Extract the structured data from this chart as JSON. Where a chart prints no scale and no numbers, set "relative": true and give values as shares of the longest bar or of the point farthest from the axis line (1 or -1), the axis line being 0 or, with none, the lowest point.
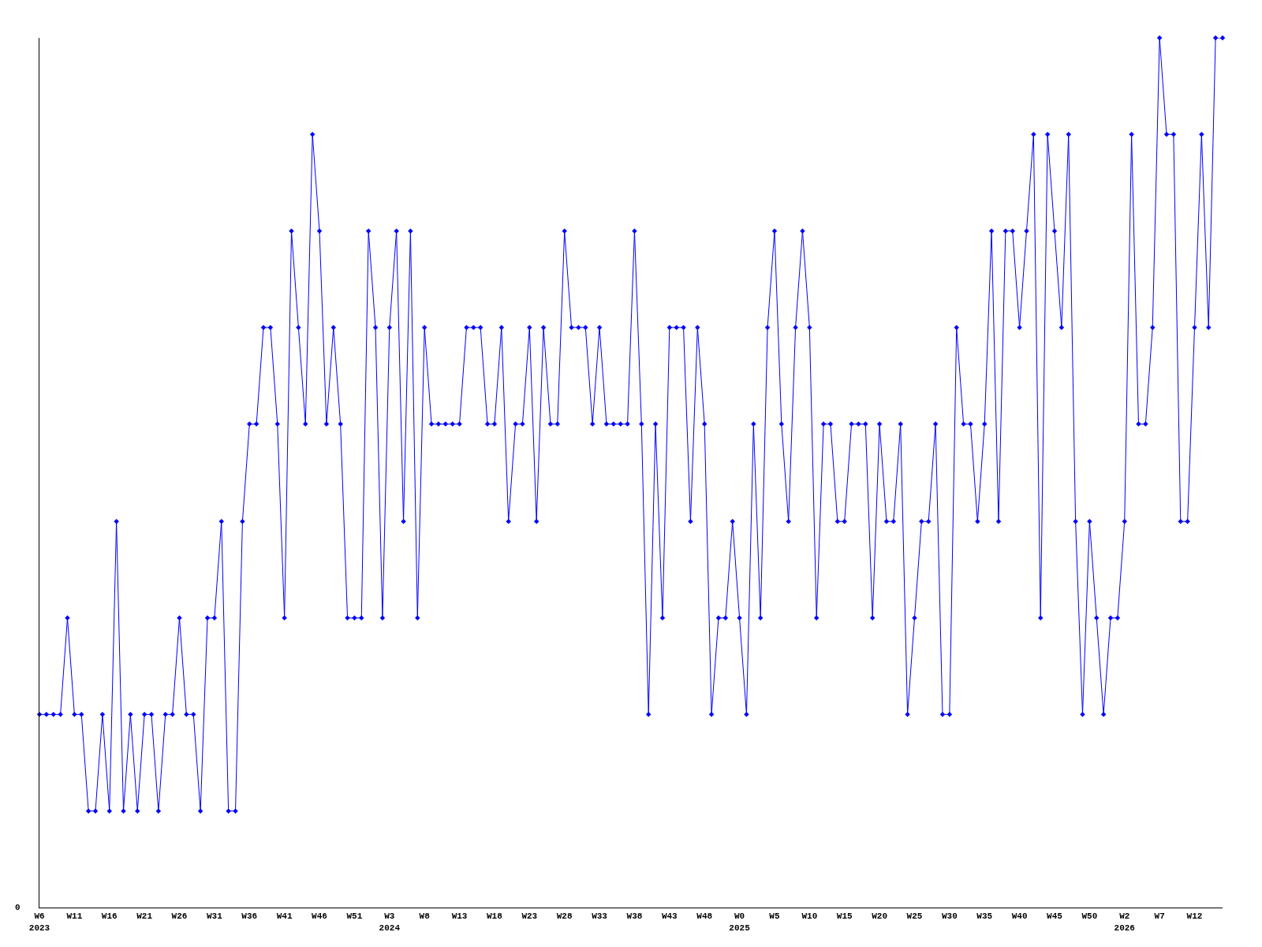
{
  "chart_data": {
    "type": "line",
    "relative": true,
    "color": "#0000ff",
    "marker": "diamond",
    "line_style": "solid",
    "legend": false,
    "annotations": [
      "0"
    ],
    "categories": [
      "W6\n2023",
      null,
      null,
      null,
      null,
      "W11",
      null,
      null,
      null,
      null,
      "W16",
      null,
      null,
      null,
      null,
      "W21",
      null,
      null,
      null,
      null,
      "W26",
      null,
      null,
      null,
      null,
      "W31",
      null,
      null,
      null,
      null,
      "W36",
      null,
      null,
      null,
      null,
      "W41",
      null,
      null,
      null,
      null,
      "W46",
      null,
      null,
      null,
      null,
      "W51",
      null,
      null,
      null,
      null,
      "W3\n2024",
      null,
      null,
      null,
      null,
      "W8",
      null,
      null,
      null,
      null,
      "W13",
      null,
      null,
      null,
      null,
      "W18",
      null,
      null,
      null,
      null,
      "W23",
      null,
      null,
      null,
      null,
      "W28",
      null,
      null,
      null,
      null,
      "W33",
      null,
      null,
      null,
      null,
      "W38",
      null,
      null,
      null,
      null,
      "W43",
      null,
      null,
      null,
      null,
      "W48",
      null,
      null,
      null,
      null,
      "W0\n2025",
      null,
      null,
      null,
      null,
      "W5",
      null,
      null,
      null,
      null,
      "W10",
      null,
      null,
      null,
      null,
      "W15",
      null,
      null,
      null,
      null,
      "W20",
      null,
      null,
      null,
      null,
      "W25",
      null,
      null,
      null,
      null,
      "W30",
      null,
      null,
      null,
      null,
      "W35",
      null,
      null,
      null,
      null,
      "W40",
      null,
      null,
      null,
      null,
      "W45",
      null,
      null,
      null,
      null,
      "W50",
      null,
      null,
      null,
      null,
      "W2\n2026",
      null,
      null,
      null,
      null,
      "W7",
      null,
      null,
      null,
      null,
      "W12",
      null,
      null,
      null,
      null
    ],
    "values": [
      0.222,
      0.222,
      0.222,
      0.222,
      0.333,
      0.222,
      0.222,
      0.111,
      0.111,
      0.222,
      0.111,
      0.444,
      0.111,
      0.222,
      0.111,
      0.222,
      0.222,
      0.111,
      0.222,
      0.222,
      0.333,
      0.222,
      0.222,
      0.111,
      0.333,
      0.333,
      0.444,
      0.111,
      0.111,
      0.444,
      0.556,
      0.556,
      0.667,
      0.667,
      0.556,
      0.333,
      0.778,
      0.667,
      0.556,
      0.889,
      0.778,
      0.556,
      0.667,
      0.556,
      0.333,
      0.333,
      0.333,
      0.778,
      0.667,
      0.333,
      0.667,
      0.778,
      0.444,
      0.778,
      0.333,
      0.667,
      0.556,
      0.556,
      0.556,
      0.556,
      0.556,
      0.667,
      0.667,
      0.667,
      0.556,
      0.556,
      0.667,
      0.444,
      0.556,
      0.556,
      0.667,
      0.444,
      0.667,
      0.556,
      0.556,
      0.778,
      0.667,
      0.667,
      0.667,
      0.556,
      0.667,
      0.556,
      0.556,
      0.556,
      0.556,
      0.778,
      0.556,
      0.222,
      0.556,
      0.333,
      0.667,
      0.667,
      0.667,
      0.444,
      0.667,
      0.556,
      0.222,
      0.333,
      0.333,
      0.444,
      0.333,
      0.222,
      0.556,
      0.333,
      0.667,
      0.778,
      0.556,
      0.444,
      0.667,
      0.778,
      0.667,
      0.333,
      0.556,
      0.556,
      0.444,
      0.444,
      0.556,
      0.556,
      0.556,
      0.333,
      0.556,
      0.444,
      0.444,
      0.556,
      0.222,
      0.333,
      0.444,
      0.444,
      0.556,
      0.222,
      0.222,
      0.667,
      0.556,
      0.556,
      0.444,
      0.556,
      0.778,
      0.444,
      0.778,
      0.778,
      0.667,
      0.778,
      0.889,
      0.333,
      0.889,
      0.778,
      0.667,
      0.889,
      0.444,
      0.222,
      0.444,
      0.333,
      0.222,
      0.333,
      0.333,
      0.444,
      0.889,
      0.556,
      0.556,
      0.667,
      1,
      0.889,
      0.889,
      0.444,
      0.444,
      0.667,
      0.889,
      0.667,
      1,
      1
    ]
  }
}
